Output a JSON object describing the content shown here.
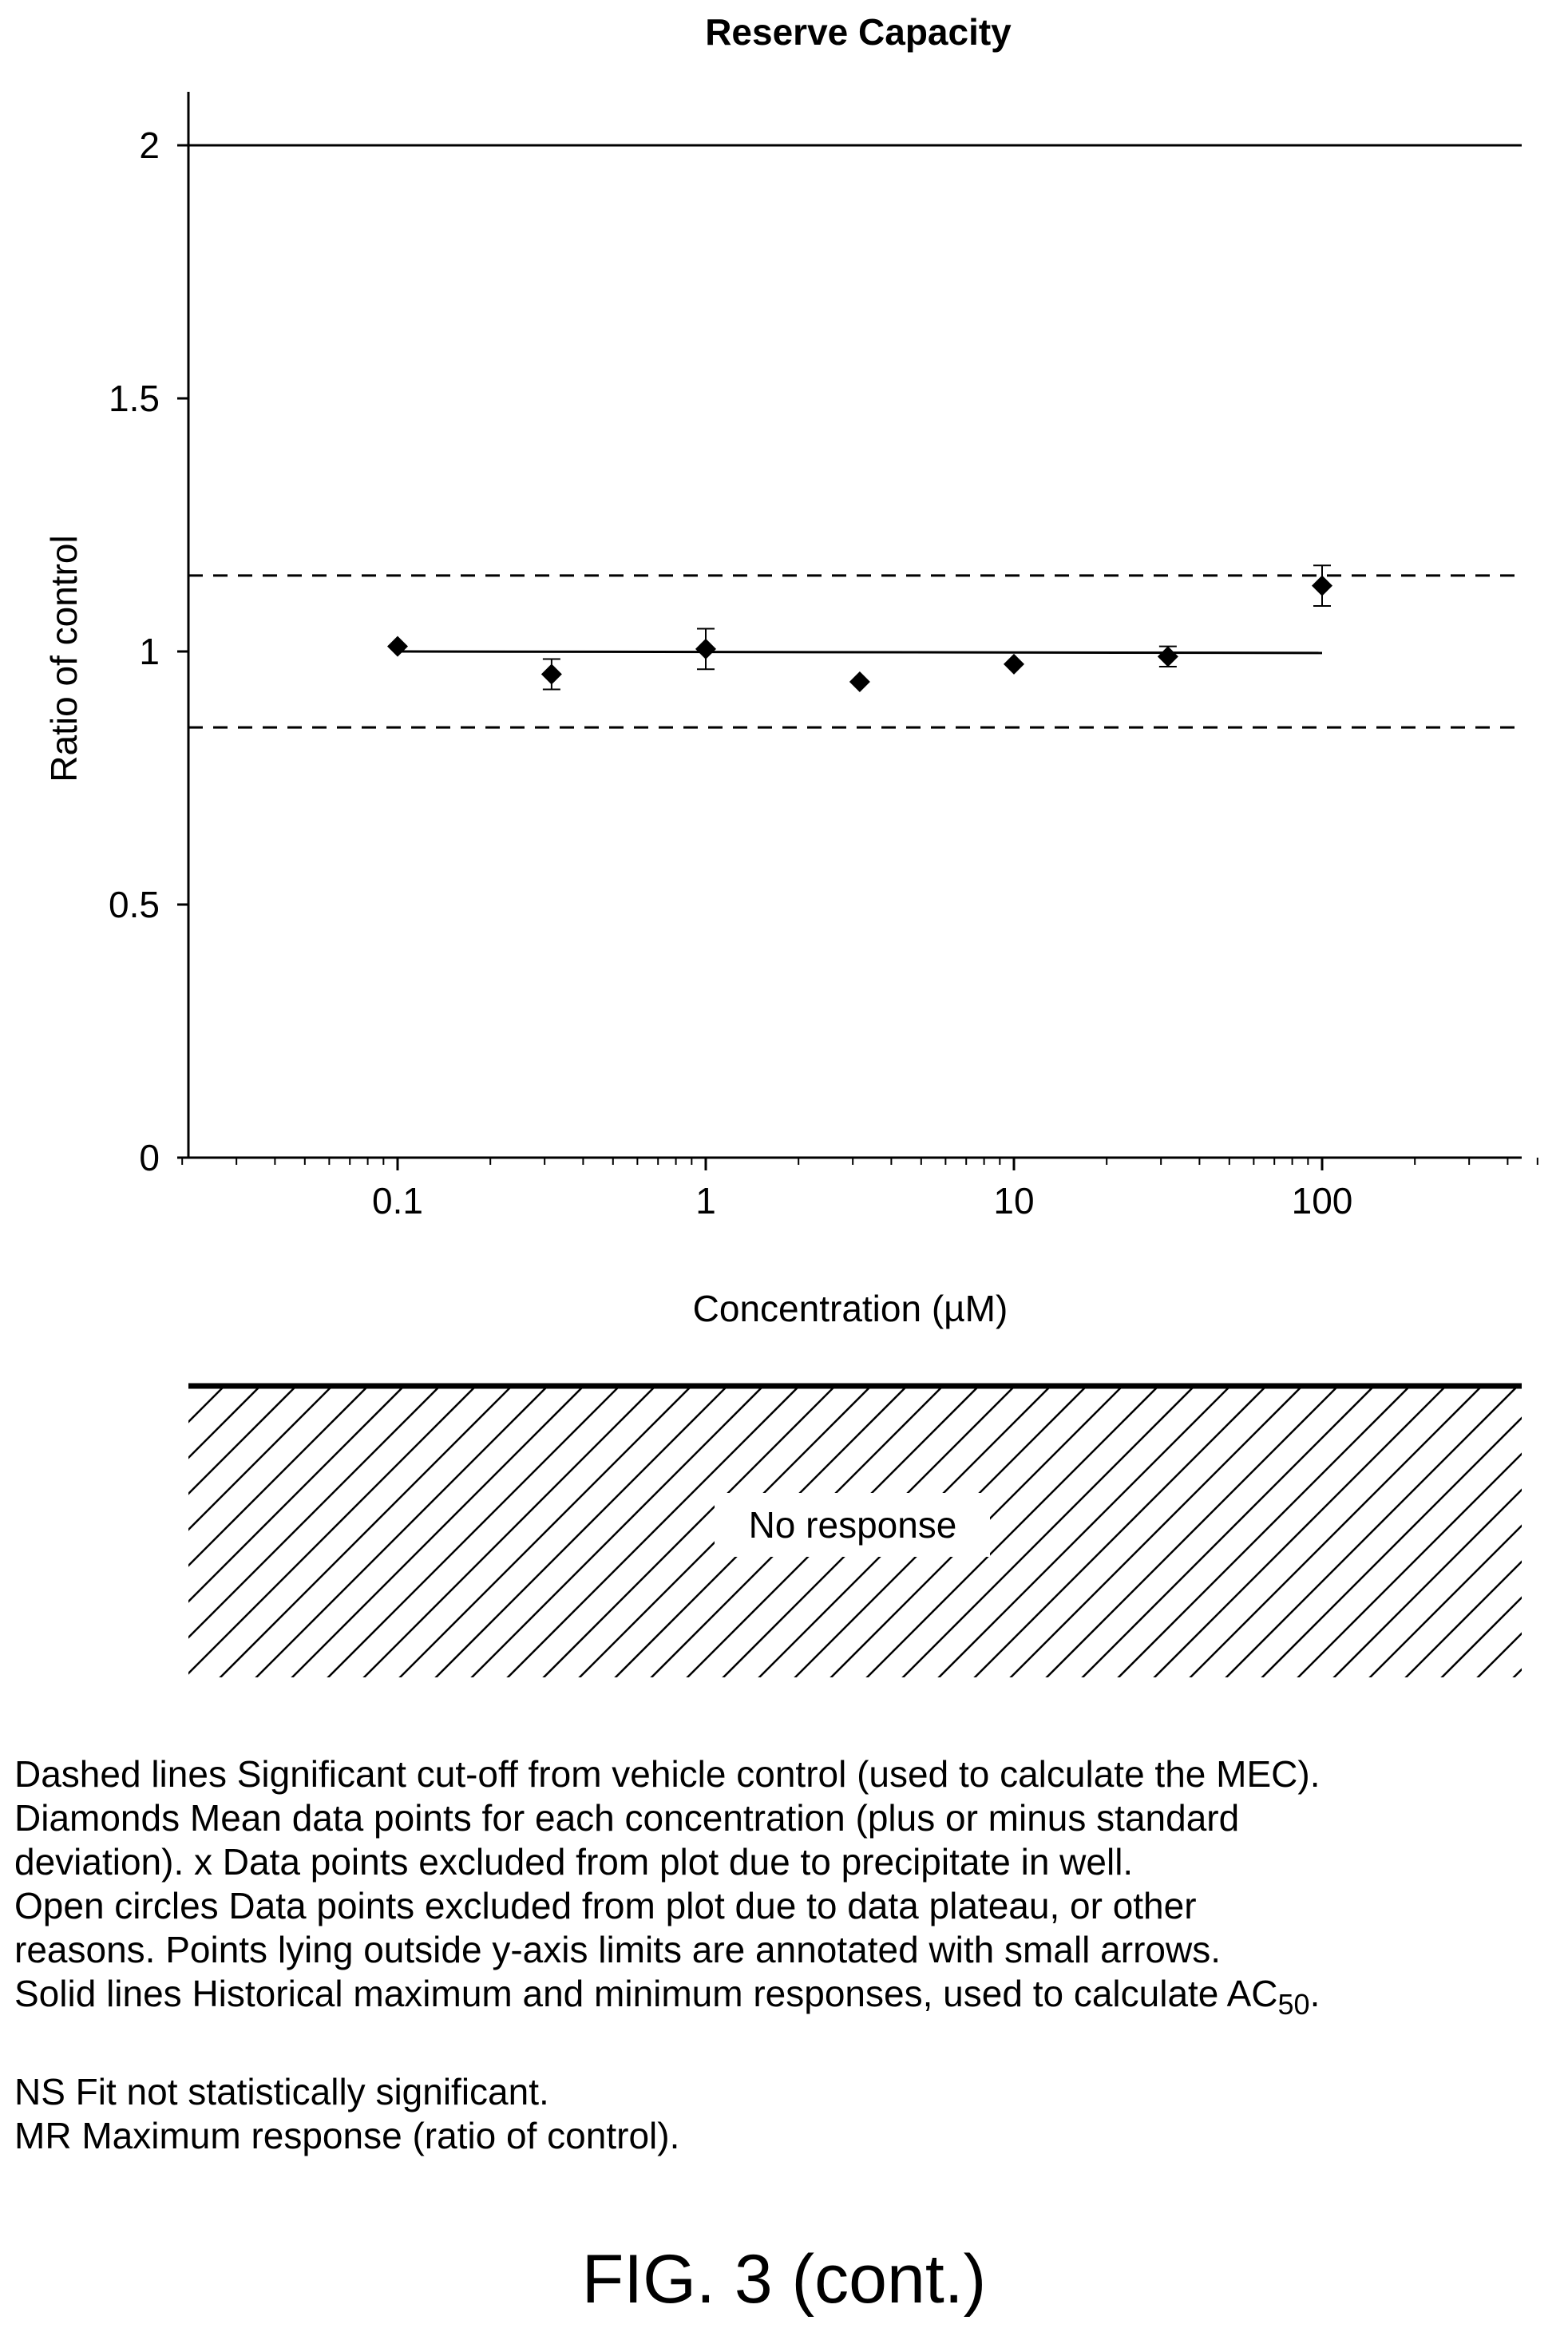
{
  "chart_data": {
    "type": "scatter",
    "title": "Reserve Capacity",
    "xlabel": "Concentration (µM)",
    "ylabel": "Ratio of control",
    "xscale": "log",
    "xlim": [
      0.02,
      500
    ],
    "ylim": [
      0,
      2.1
    ],
    "x_ticks": [
      0.1,
      1,
      10,
      100
    ],
    "x_tick_labels": [
      "0.1",
      "1",
      "10",
      "100"
    ],
    "y_ticks": [
      0,
      0.5,
      1,
      1.5,
      2
    ],
    "y_tick_labels": [
      "0",
      "0.5",
      "1",
      "1.5",
      "2"
    ],
    "grid": false,
    "series": [
      {
        "marker": "diamond",
        "x": [
          0.1,
          0.316,
          1,
          3.16,
          10,
          31.6,
          100
        ],
        "y": [
          1.01,
          0.955,
          1.005,
          0.94,
          0.975,
          0.99,
          1.13
        ],
        "err": [
          0,
          0.03,
          0.04,
          0,
          0,
          0.02,
          0.04
        ]
      }
    ],
    "fit_line": {
      "x": [
        0.1,
        100
      ],
      "y": [
        1.0,
        0.997
      ]
    },
    "reference_lines": [
      {
        "style": "solid",
        "y": 2.0
      },
      {
        "style": "dashed",
        "y": 1.15
      },
      {
        "style": "dashed",
        "y": 0.85
      }
    ],
    "response_box_label": "No response"
  },
  "legend": {
    "line1": "Dashed lines Significant cut-off from vehicle control (used to calculate the MEC).",
    "line2": "Diamonds Mean data points for each concentration (plus or minus standard",
    "line3": "deviation). x Data points excluded from plot due to precipitate in well.",
    "line4": "Open circles Data points excluded from plot due to data plateau, or other",
    "line5": "reasons. Points lying outside y-axis limits are annotated with small arrows.",
    "line6_main": "Solid lines Historical maximum and minimum responses, used to calculate AC",
    "line6_sub": "50",
    "line6_end": ".",
    "line7": "NS Fit not statistically significant.",
    "line8": "MR Maximum response (ratio of control)."
  },
  "figure_label": "FIG. 3 (cont.)"
}
